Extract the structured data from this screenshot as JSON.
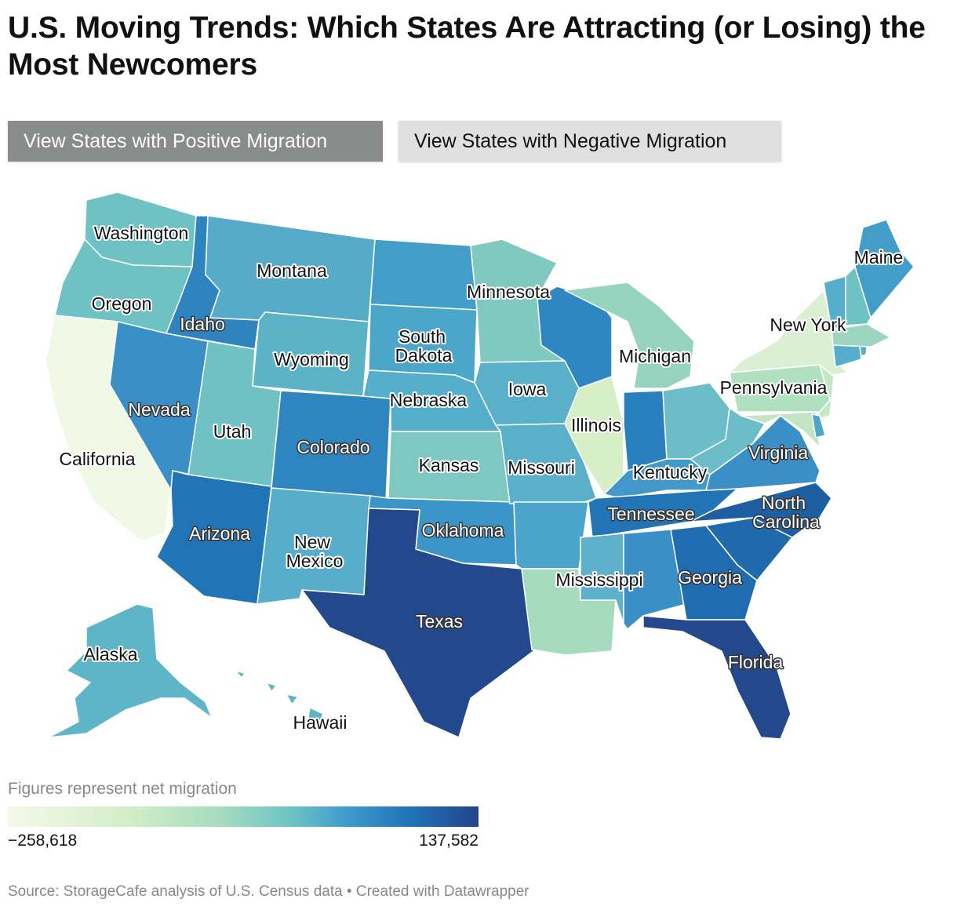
{
  "title": "U.S. Moving Trends: Which States Are Attracting (or Losing) the Most Newcomers",
  "buttons": {
    "positive": "View States with Positive Migration",
    "negative": "View States with Negative Migration"
  },
  "legend": {
    "title": "Figures represent net migration",
    "min": "−258,618",
    "max": "137,582"
  },
  "source": "Source: StorageCafe analysis of U.S. Census data • Created with Datawrapper",
  "states": [
    {
      "name": "Washington",
      "fill": "#6ec2c4"
    },
    {
      "name": "Oregon",
      "fill": "#6ec2c4"
    },
    {
      "name": "California",
      "fill": "#f1f8e6"
    },
    {
      "name": "Idaho",
      "fill": "#2f84bf"
    },
    {
      "name": "Nevada",
      "fill": "#3a90c6"
    },
    {
      "name": "Montana",
      "fill": "#56acc8"
    },
    {
      "name": "Wyoming",
      "fill": "#5cb3c8"
    },
    {
      "name": "Utah",
      "fill": "#6fc1c4"
    },
    {
      "name": "Arizona",
      "fill": "#2174b5"
    },
    {
      "name": "Colorado",
      "fill": "#2f85c0"
    },
    {
      "name": "New Mexico",
      "fill": "#56aecb"
    },
    {
      "name": "North Dakota",
      "fill": "#429dc9"
    },
    {
      "name": "South Dakota",
      "fill": "#4ba6ca"
    },
    {
      "name": "Nebraska",
      "fill": "#55aecb"
    },
    {
      "name": "Kansas",
      "fill": "#7dc8c0"
    },
    {
      "name": "Oklahoma",
      "fill": "#3c95c8"
    },
    {
      "name": "Texas",
      "fill": "#24488c"
    },
    {
      "name": "Minnesota",
      "fill": "#7fc9c1"
    },
    {
      "name": "Iowa",
      "fill": "#5ab0c9"
    },
    {
      "name": "Missouri",
      "fill": "#5aafc9"
    },
    {
      "name": "Arkansas",
      "fill": "#4ba4ca"
    },
    {
      "name": "Louisiana",
      "fill": "#a6dbbe"
    },
    {
      "name": "Wisconsin",
      "fill": "#2f86c0"
    },
    {
      "name": "Illinois",
      "fill": "#d6efc6"
    },
    {
      "name": "Michigan",
      "fill": "#96d4c0"
    },
    {
      "name": "Indiana",
      "fill": "#2a7fbe"
    },
    {
      "name": "Ohio",
      "fill": "#6cbdc8"
    },
    {
      "name": "Kentucky",
      "fill": "#4299c9"
    },
    {
      "name": "Tennessee",
      "fill": "#2175b6"
    },
    {
      "name": "Mississippi",
      "fill": "#5db1ca"
    },
    {
      "name": "Alabama",
      "fill": "#3a8fc6"
    },
    {
      "name": "Georgia",
      "fill": "#1f6cb0"
    },
    {
      "name": "Florida",
      "fill": "#24488c"
    },
    {
      "name": "South Carolina",
      "fill": "#1e6aad"
    },
    {
      "name": "North Carolina",
      "fill": "#1e5fa2"
    },
    {
      "name": "Virginia",
      "fill": "#3a8fc6"
    },
    {
      "name": "West Virginia",
      "fill": "#6cbdc8"
    },
    {
      "name": "Pennsylvania",
      "fill": "#b1e0c0"
    },
    {
      "name": "New York",
      "fill": "#dbf0d2"
    },
    {
      "name": "New Jersey",
      "fill": "#c4e7c4"
    },
    {
      "name": "Maryland",
      "fill": "#c2e5c4"
    },
    {
      "name": "Delaware",
      "fill": "#4ba6ca"
    },
    {
      "name": "Connecticut",
      "fill": "#55aecb"
    },
    {
      "name": "Rhode Island",
      "fill": "#55aecb"
    },
    {
      "name": "Massachusetts",
      "fill": "#9cd6c1"
    },
    {
      "name": "Vermont",
      "fill": "#55aecb"
    },
    {
      "name": "New Hampshire",
      "fill": "#6ec2c4"
    },
    {
      "name": "Maine",
      "fill": "#429dc9"
    },
    {
      "name": "Alaska",
      "fill": "#5fb5c8"
    },
    {
      "name": "Hawaii",
      "fill": "#5fb5c8"
    }
  ],
  "labels": {
    "washington": "Washington",
    "montana": "Montana",
    "oregon": "Oregon",
    "idaho": "Idaho",
    "minnesota": "Minnesota",
    "maine": "Maine",
    "new_york": "New York",
    "south": "South",
    "dakota": "Dakota",
    "wyoming": "Wyoming",
    "michigan": "Michigan",
    "nevada": "Nevada",
    "nebraska": "Nebraska",
    "iowa": "Iowa",
    "pennsylvania": "Pennsylvania",
    "illinois": "Illinois",
    "utah": "Utah",
    "colorado": "Colorado",
    "california": "California",
    "virginia": "Virginia",
    "kansas": "Kansas",
    "missouri": "Missouri",
    "kentucky": "Kentucky",
    "north": "North",
    "carolina": "Carolina",
    "tennessee": "Tennessee",
    "oklahoma": "Oklahoma",
    "arizona": "Arizona",
    "new": "New",
    "mexico": "Mexico",
    "mississippi": "Mississippi",
    "georgia": "Georgia",
    "texas": "Texas",
    "alaska": "Alaska",
    "florida": "Florida",
    "hawaii": "Hawaii"
  }
}
